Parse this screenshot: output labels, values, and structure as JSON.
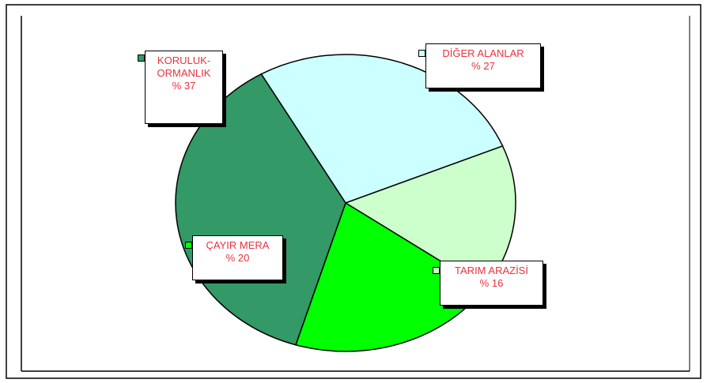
{
  "chart_data": {
    "type": "pie",
    "categories": [
      "DİĞER ALANLAR",
      "TARIM ARAZİSİ",
      "ÇAYIR MERA",
      "KORULUK-ORMANLIK"
    ],
    "values": [
      27,
      16,
      20,
      37
    ],
    "value_labels": [
      "% 27",
      "% 16",
      "% 20",
      "% 37"
    ],
    "colors": [
      "#ccffff",
      "#ccffcc",
      "#00ff00",
      "#339966"
    ]
  }
}
